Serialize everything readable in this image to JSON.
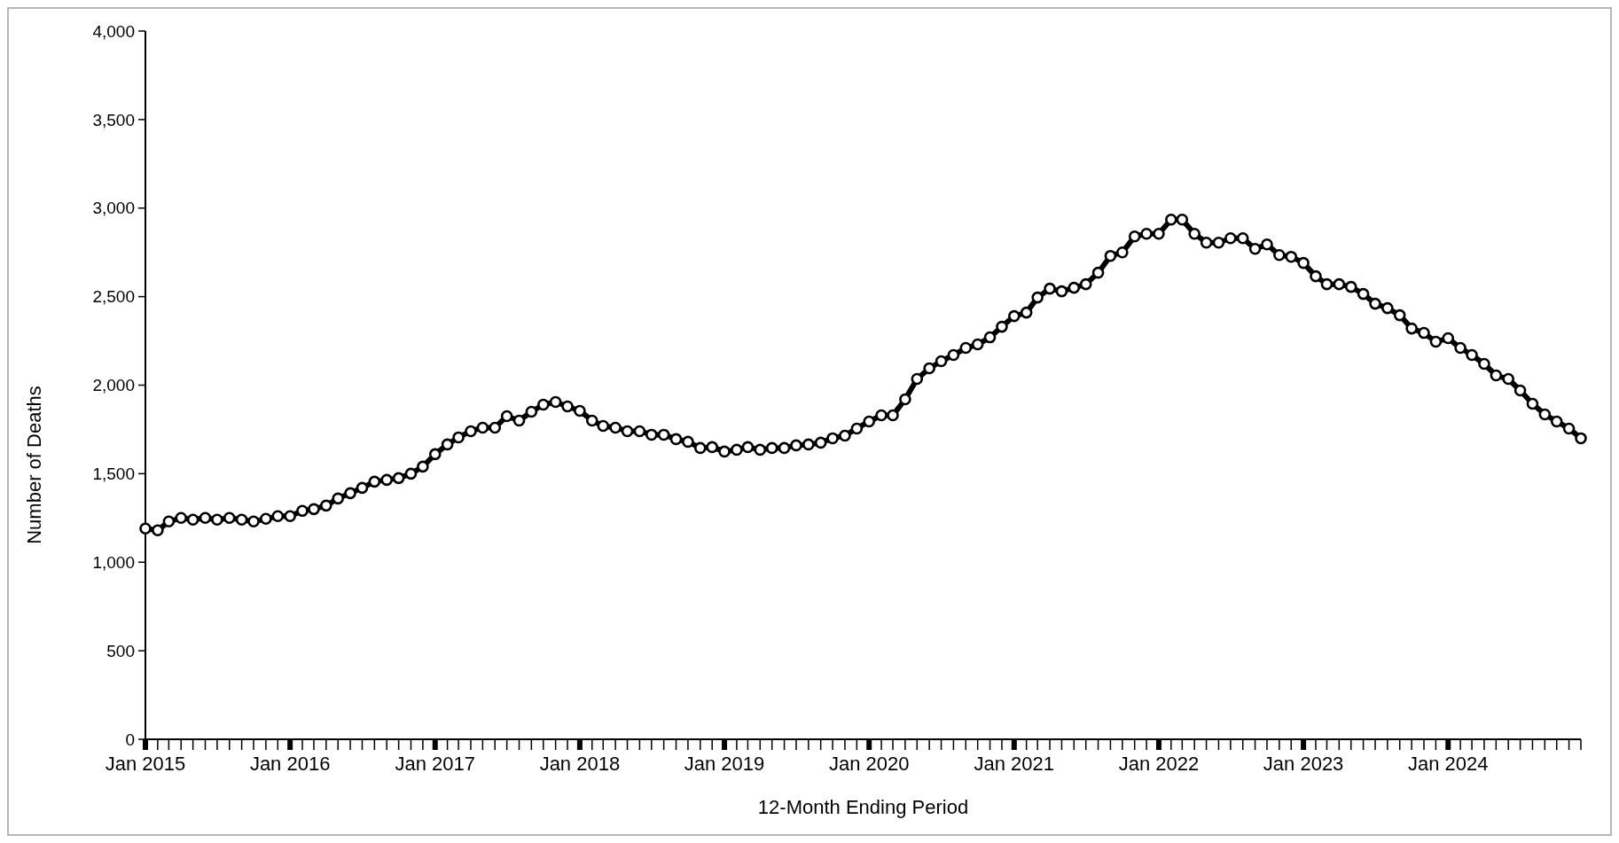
{
  "chart_data": {
    "type": "line",
    "xlabel": "12-Month Ending Period",
    "ylabel": "Number of Deaths",
    "marker": "circle",
    "line_style": "solid",
    "grid": false,
    "xlim": [
      "2015-01",
      "2024-12"
    ],
    "ylim": [
      0,
      4000
    ],
    "yticks": [
      0,
      {
        "value": 500,
        "label": "500"
      },
      {
        "value": 1000,
        "label": "1,000"
      },
      {
        "value": 1500,
        "label": "1,500"
      },
      {
        "value": 2000,
        "label": "2,000"
      },
      {
        "value": 2500,
        "label": "2,500"
      },
      {
        "value": 3000,
        "label": "3,000"
      },
      {
        "value": 3500,
        "label": "3,500"
      },
      {
        "value": 4000,
        "label": "4,000"
      }
    ],
    "xticks": [
      {
        "value": "2015-01",
        "label": "Jan 2015"
      },
      {
        "value": "2015-02",
        "label": null
      },
      {
        "value": "2015-03",
        "label": null
      },
      {
        "value": "2015-04",
        "label": null
      },
      {
        "value": "2015-05",
        "label": null
      },
      {
        "value": "2015-06",
        "label": null
      },
      {
        "value": "2015-07",
        "label": null
      },
      {
        "value": "2015-08",
        "label": null
      },
      {
        "value": "2015-09",
        "label": null
      },
      {
        "value": "2015-10",
        "label": null
      },
      {
        "value": "2015-11",
        "label": null
      },
      {
        "value": "2015-12",
        "label": null
      },
      {
        "value": "2016-01",
        "label": "Jan 2016"
      },
      {
        "value": "2016-02",
        "label": null
      },
      {
        "value": "2016-03",
        "label": null
      },
      {
        "value": "2016-04",
        "label": null
      },
      {
        "value": "2016-05",
        "label": null
      },
      {
        "value": "2016-06",
        "label": null
      },
      {
        "value": "2016-07",
        "label": null
      },
      {
        "value": "2016-08",
        "label": null
      },
      {
        "value": "2016-09",
        "label": null
      },
      {
        "value": "2016-10",
        "label": null
      },
      {
        "value": "2016-11",
        "label": null
      },
      {
        "value": "2016-12",
        "label": null
      },
      {
        "value": "2017-01",
        "label": "Jan 2017"
      },
      {
        "value": "2017-02",
        "label": null
      },
      {
        "value": "2017-03",
        "label": null
      },
      {
        "value": "2017-04",
        "label": null
      },
      {
        "value": "2017-05",
        "label": null
      },
      {
        "value": "2017-06",
        "label": null
      },
      {
        "value": "2017-07",
        "label": null
      },
      {
        "value": "2017-08",
        "label": null
      },
      {
        "value": "2017-09",
        "label": null
      },
      {
        "value": "2017-10",
        "label": null
      },
      {
        "value": "2017-11",
        "label": null
      },
      {
        "value": "2017-12",
        "label": null
      },
      {
        "value": "2018-01",
        "label": "Jan 2018"
      },
      {
        "value": "2018-02",
        "label": null
      },
      {
        "value": "2018-03",
        "label": null
      },
      {
        "value": "2018-04",
        "label": null
      },
      {
        "value": "2018-05",
        "label": null
      },
      {
        "value": "2018-06",
        "label": null
      },
      {
        "value": "2018-07",
        "label": null
      },
      {
        "value": "2018-08",
        "label": null
      },
      {
        "value": "2018-09",
        "label": null
      },
      {
        "value": "2018-10",
        "label": null
      },
      {
        "value": "2018-11",
        "label": null
      },
      {
        "value": "2018-12",
        "label": null
      },
      {
        "value": "2019-01",
        "label": "Jan 2019"
      },
      {
        "value": "2019-02",
        "label": null
      },
      {
        "value": "2019-03",
        "label": null
      },
      {
        "value": "2019-04",
        "label": null
      },
      {
        "value": "2019-05",
        "label": null
      },
      {
        "value": "2019-06",
        "label": null
      },
      {
        "value": "2019-07",
        "label": null
      },
      {
        "value": "2019-08",
        "label": null
      },
      {
        "value": "2019-09",
        "label": null
      },
      {
        "value": "2019-10",
        "label": null
      },
      {
        "value": "2019-11",
        "label": null
      },
      {
        "value": "2019-12",
        "label": null
      },
      {
        "value": "2020-01",
        "label": "Jan 2020"
      },
      {
        "value": "2020-02",
        "label": null
      },
      {
        "value": "2020-03",
        "label": null
      },
      {
        "value": "2020-04",
        "label": null
      },
      {
        "value": "2020-05",
        "label": null
      },
      {
        "value": "2020-06",
        "label": null
      },
      {
        "value": "2020-07",
        "label": null
      },
      {
        "value": "2020-08",
        "label": null
      },
      {
        "value": "2020-09",
        "label": null
      },
      {
        "value": "2020-10",
        "label": null
      },
      {
        "value": "2020-11",
        "label": null
      },
      {
        "value": "2020-12",
        "label": null
      },
      {
        "value": "2021-01",
        "label": "Jan 2021"
      },
      {
        "value": "2021-02",
        "label": null
      },
      {
        "value": "2021-03",
        "label": null
      },
      {
        "value": "2021-04",
        "label": null
      },
      {
        "value": "2021-05",
        "label": null
      },
      {
        "value": "2021-06",
        "label": null
      },
      {
        "value": "2021-07",
        "label": null
      },
      {
        "value": "2021-08",
        "label": null
      },
      {
        "value": "2021-09",
        "label": null
      },
      {
        "value": "2021-10",
        "label": null
      },
      {
        "value": "2021-11",
        "label": null
      },
      {
        "value": "2021-12",
        "label": null
      },
      {
        "value": "2022-01",
        "label": "Jan 2022"
      },
      {
        "value": "2022-02",
        "label": null
      },
      {
        "value": "2022-03",
        "label": null
      },
      {
        "value": "2022-04",
        "label": null
      },
      {
        "value": "2022-05",
        "label": null
      },
      {
        "value": "2022-06",
        "label": null
      },
      {
        "value": "2022-07",
        "label": null
      },
      {
        "value": "2022-08",
        "label": null
      },
      {
        "value": "2022-09",
        "label": null
      },
      {
        "value": "2022-10",
        "label": null
      },
      {
        "value": "2022-11",
        "label": null
      },
      {
        "value": "2022-12",
        "label": null
      },
      {
        "value": "2023-01",
        "label": "Jan 2023"
      },
      {
        "value": "2023-02",
        "label": null
      },
      {
        "value": "2023-03",
        "label": null
      },
      {
        "value": "2023-04",
        "label": null
      },
      {
        "value": "2023-05",
        "label": null
      },
      {
        "value": "2023-06",
        "label": null
      },
      {
        "value": "2023-07",
        "label": null
      },
      {
        "value": "2023-08",
        "label": null
      },
      {
        "value": "2023-09",
        "label": null
      },
      {
        "value": "2023-10",
        "label": null
      },
      {
        "value": "2023-11",
        "label": null
      },
      {
        "value": "2023-12",
        "label": null
      },
      {
        "value": "2024-01",
        "label": "Jan 2024"
      },
      {
        "value": "2024-02",
        "label": null
      },
      {
        "value": "2024-03",
        "label": null
      },
      {
        "value": "2024-04",
        "label": null
      },
      {
        "value": "2024-05",
        "label": null
      },
      {
        "value": "2024-06",
        "label": null
      },
      {
        "value": "2024-07",
        "label": null
      },
      {
        "value": "2024-08",
        "label": null
      },
      {
        "value": "2024-09",
        "label": null
      },
      {
        "value": "2024-10",
        "label": null
      },
      {
        "value": "2024-11",
        "label": null
      },
      {
        "value": "2024-12",
        "label": null
      }
    ],
    "x": [
      "2015-01",
      "2015-02",
      "2015-03",
      "2015-04",
      "2015-05",
      "2015-06",
      "2015-07",
      "2015-08",
      "2015-09",
      "2015-10",
      "2015-11",
      "2015-12",
      "2016-01",
      "2016-02",
      "2016-03",
      "2016-04",
      "2016-05",
      "2016-06",
      "2016-07",
      "2016-08",
      "2016-09",
      "2016-10",
      "2016-11",
      "2016-12",
      "2017-01",
      "2017-02",
      "2017-03",
      "2017-04",
      "2017-05",
      "2017-06",
      "2017-07",
      "2017-08",
      "2017-09",
      "2017-10",
      "2017-11",
      "2017-12",
      "2018-01",
      "2018-02",
      "2018-03",
      "2018-04",
      "2018-05",
      "2018-06",
      "2018-07",
      "2018-08",
      "2018-09",
      "2018-10",
      "2018-11",
      "2018-12",
      "2019-01",
      "2019-02",
      "2019-03",
      "2019-04",
      "2019-05",
      "2019-06",
      "2019-07",
      "2019-08",
      "2019-09",
      "2019-10",
      "2019-11",
      "2019-12",
      "2020-01",
      "2020-02",
      "2020-03",
      "2020-04",
      "2020-05",
      "2020-06",
      "2020-07",
      "2020-08",
      "2020-09",
      "2020-10",
      "2020-11",
      "2020-12",
      "2021-01",
      "2021-02",
      "2021-03",
      "2021-04",
      "2021-05",
      "2021-06",
      "2021-07",
      "2021-08",
      "2021-09",
      "2021-10",
      "2021-11",
      "2021-12",
      "2022-01",
      "2022-02",
      "2022-03",
      "2022-04",
      "2022-05",
      "2022-06",
      "2022-07",
      "2022-08",
      "2022-09",
      "2022-10",
      "2022-11",
      "2022-12",
      "2023-01",
      "2023-02",
      "2023-03",
      "2023-04",
      "2023-05",
      "2023-06",
      "2023-07",
      "2023-08",
      "2023-09",
      "2023-10",
      "2023-11",
      "2023-12",
      "2024-01",
      "2024-02",
      "2024-03",
      "2024-04",
      "2024-05",
      "2024-06",
      "2024-07",
      "2024-08",
      "2024-09",
      "2024-10",
      "2024-11",
      "2024-12"
    ],
    "series": [
      {
        "color": "#000000",
        "values": [
          1190,
          1180,
          1230,
          1250,
          1240,
          1250,
          1240,
          1250,
          1240,
          1230,
          1245,
          1260,
          1260,
          1290,
          1300,
          1320,
          1360,
          1390,
          1420,
          1455,
          1465,
          1475,
          1500,
          1540,
          1610,
          1665,
          1705,
          1740,
          1760,
          1760,
          1825,
          1800,
          1850,
          1890,
          1905,
          1880,
          1855,
          1800,
          1770,
          1760,
          1740,
          1740,
          1720,
          1720,
          1695,
          1680,
          1645,
          1650,
          1625,
          1635,
          1650,
          1635,
          1645,
          1645,
          1660,
          1665,
          1675,
          1700,
          1715,
          1755,
          1795,
          1830,
          1830,
          1920,
          2035,
          2095,
          2135,
          2170,
          2210,
          2230,
          2270,
          2330,
          2390,
          2410,
          2495,
          2545,
          2530,
          2550,
          2570,
          2635,
          2730,
          2750,
          2840,
          2855,
          2855,
          2935,
          2935,
          2855,
          2805,
          2805,
          2830,
          2830,
          2770,
          2795,
          2735,
          2725,
          2690,
          2615,
          2570,
          2570,
          2555,
          2515,
          2460,
          2435,
          2395,
          2320,
          2295,
          2245,
          2265,
          2210,
          2170,
          2120,
          2055,
          2035,
          1970,
          1895,
          1835,
          1795,
          1755,
          1700
        ]
      }
    ]
  }
}
